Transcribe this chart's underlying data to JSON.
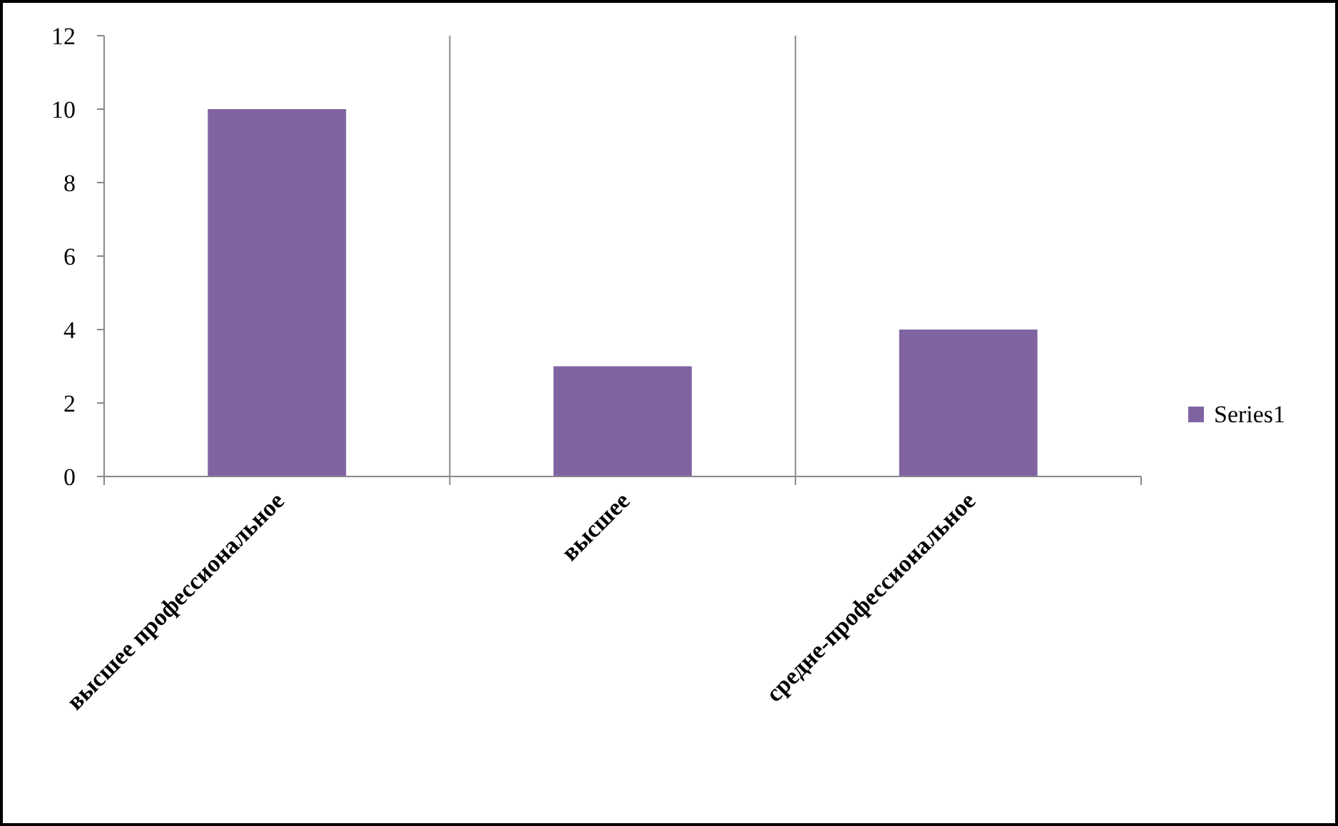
{
  "chart_data": {
    "type": "bar",
    "categories": [
      "высшее профессиональное",
      "высшее",
      "средне-профессиональное"
    ],
    "series": [
      {
        "name": "Series1",
        "color": "#8064a2",
        "values": [
          10,
          3,
          4
        ]
      }
    ],
    "ylim": [
      0,
      12
    ],
    "yticks": [
      0,
      2,
      4,
      6,
      8,
      10,
      12
    ],
    "grid": "x",
    "legend": "right"
  }
}
